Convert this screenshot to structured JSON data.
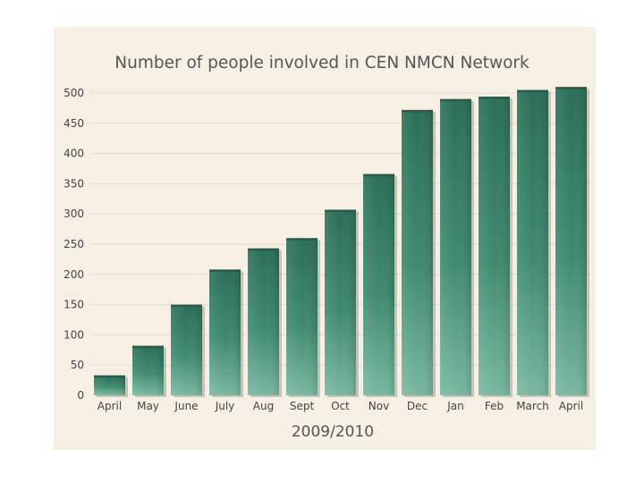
{
  "chart_data": {
    "type": "bar",
    "title": "Number of people involved in CEN NMCN Network",
    "xlabel": "2009/2010",
    "ylabel": "",
    "categories": [
      "April",
      "May",
      "June",
      "July",
      "Aug",
      "Sept",
      "Oct",
      "Nov",
      "Dec",
      "Jan",
      "Feb",
      "March",
      "April"
    ],
    "values": [
      33,
      82,
      150,
      208,
      243,
      260,
      307,
      366,
      472,
      490,
      494,
      505,
      510
    ],
    "ylim": [
      0,
      500
    ],
    "yticks": [
      0,
      50,
      100,
      150,
      200,
      250,
      300,
      350,
      400,
      450,
      500
    ],
    "grid": true,
    "legend": "none",
    "colors": {
      "bar_dark": "#2a6e57",
      "bar_mid": "#3e8a6f",
      "bar_light": "#79b8a1",
      "panel_bg": "#f6efe3"
    }
  }
}
